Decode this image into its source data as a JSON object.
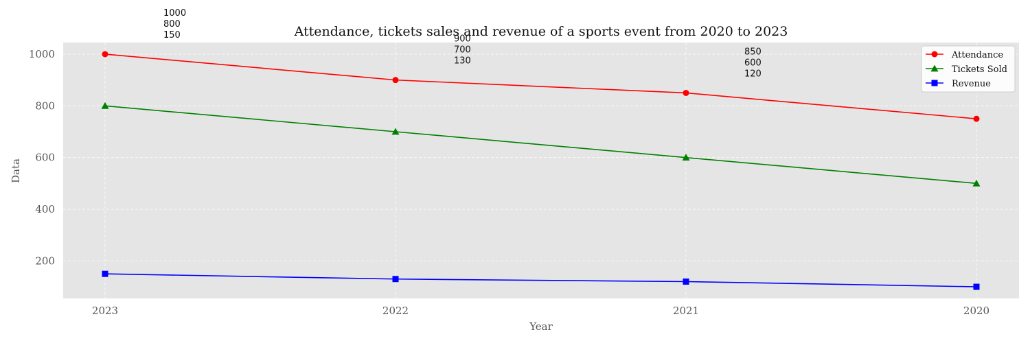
{
  "chart_data": {
    "type": "line",
    "title": "Attendance, tickets sales and revenue of a sports event from 2020 to 2023",
    "xlabel": "Year",
    "ylabel": "Data",
    "categories": [
      "2023",
      "2022",
      "2021",
      "2020"
    ],
    "ylim": [
      55,
      1045
    ],
    "yticks": [
      200,
      400,
      600,
      800,
      1000
    ],
    "grid": true,
    "legend_position": "top-right",
    "series": [
      {
        "name": "Attendance",
        "values": [
          1000,
          900,
          850,
          750
        ],
        "color": "#ff0000",
        "marker": "circle"
      },
      {
        "name": "Tickets Sold",
        "values": [
          800,
          700,
          600,
          500
        ],
        "color": "#008000",
        "marker": "triangle"
      },
      {
        "name": "Revenue",
        "values": [
          150,
          130,
          120,
          100
        ],
        "color": "#0000ff",
        "marker": "square"
      }
    ],
    "annotations": [
      {
        "category": "2023",
        "lines": [
          "1000",
          "800",
          "150"
        ]
      },
      {
        "category": "2022",
        "lines": [
          "900",
          "700",
          "130"
        ]
      },
      {
        "category": "2021",
        "lines": [
          "850",
          "600",
          "120"
        ]
      }
    ]
  }
}
